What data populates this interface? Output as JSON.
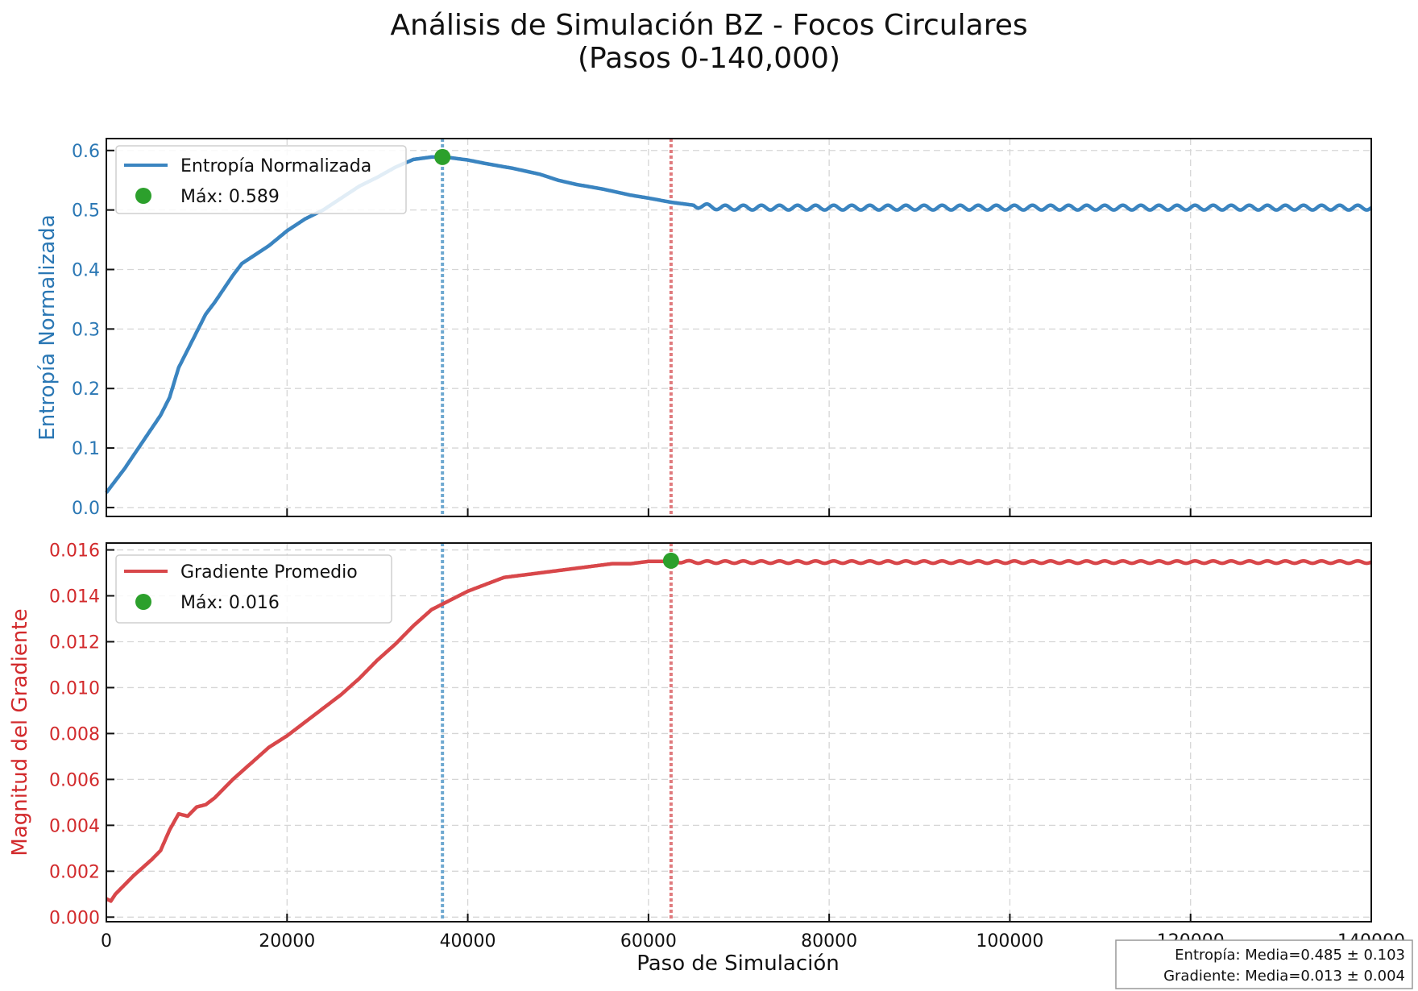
{
  "title_line1": "Análisis de Simulación BZ - Focos Circulares",
  "title_line2": "(Pasos 0-140,000)",
  "colors": {
    "entropy": "#3a84c0",
    "entropy_axis": "#2a77b4",
    "gradient": "#d8474a",
    "gradient_axis": "#d22a2c",
    "marker": "#2ca02c"
  },
  "stats_box": {
    "line1": "Entropía: Media=0.485 ± 0.103",
    "line2": "Gradiente: Media=0.013 ± 0.004"
  },
  "chart_data": [
    {
      "type": "line",
      "ylabel": "Entropía Normalizada",
      "xlim": [
        0,
        140000
      ],
      "ylim": [
        -0.015,
        0.62
      ],
      "yticks": [
        0.0,
        0.1,
        0.2,
        0.3,
        0.4,
        0.5,
        0.6
      ],
      "ytick_labels": [
        "0.0",
        "0.1",
        "0.2",
        "0.3",
        "0.4",
        "0.5",
        "0.6"
      ],
      "grid": true,
      "legend_placement": "upper-left",
      "series": [
        {
          "name": "Entropía Normalizada",
          "x": [
            0,
            1000,
            2000,
            4000,
            6000,
            7000,
            8000,
            9000,
            10000,
            11000,
            12000,
            14000,
            15000,
            16000,
            18000,
            20000,
            22000,
            24000,
            26000,
            28000,
            30000,
            32000,
            34000,
            36000,
            37000,
            38000,
            40000,
            42000,
            45000,
            48000,
            50000,
            52000,
            55000,
            58000,
            60000,
            62500,
            65000,
            67000,
            70000
          ],
          "y": [
            0.025,
            0.045,
            0.065,
            0.11,
            0.155,
            0.185,
            0.235,
            0.265,
            0.295,
            0.325,
            0.345,
            0.39,
            0.41,
            0.42,
            0.44,
            0.465,
            0.485,
            0.5,
            0.52,
            0.54,
            0.555,
            0.572,
            0.585,
            0.589,
            0.589,
            0.588,
            0.584,
            0.578,
            0.57,
            0.56,
            0.55,
            0.543,
            0.535,
            0.525,
            0.52,
            0.513,
            0.508,
            0.506,
            0.505
          ],
          "oscillation_after": 65000,
          "oscillation_amplitude": 0.004,
          "oscillation_period": 2000,
          "plateau_value": 0.504
        }
      ],
      "max_marker": {
        "label": "Máx: 0.589",
        "x": 37200,
        "y": 0.589
      },
      "vlines": [
        {
          "x": 37200,
          "color": "#6ea8d0"
        },
        {
          "x": 62500,
          "color": "#e07a7d"
        }
      ]
    },
    {
      "type": "line",
      "ylabel": "Magnitud del Gradiente",
      "xlabel": "Paso de Simulación",
      "xlim": [
        0,
        140000
      ],
      "ylim": [
        -0.0002,
        0.0163
      ],
      "yticks": [
        0.0,
        0.002,
        0.004,
        0.006,
        0.008,
        0.01,
        0.012,
        0.014,
        0.016
      ],
      "ytick_labels": [
        "0.000",
        "0.002",
        "0.004",
        "0.006",
        "0.008",
        "0.010",
        "0.012",
        "0.014",
        "0.016"
      ],
      "xticks": [
        0,
        20000,
        40000,
        60000,
        80000,
        100000,
        120000,
        140000
      ],
      "xtick_labels": [
        "0",
        "20000",
        "40000",
        "60000",
        "80000",
        "100000",
        "120000",
        "140000"
      ],
      "grid": true,
      "legend_placement": "upper-left",
      "series": [
        {
          "name": "Gradiente Promedio",
          "x": [
            0,
            500,
            1000,
            3000,
            5000,
            6000,
            7000,
            8000,
            9000,
            10000,
            11000,
            12000,
            14000,
            16000,
            18000,
            20000,
            22000,
            24000,
            26000,
            28000,
            30000,
            32000,
            34000,
            36000,
            38000,
            40000,
            42000,
            44000,
            46000,
            48000,
            50000,
            52000,
            54000,
            56000,
            58000,
            60000,
            62500,
            65000
          ],
          "y": [
            0.0008,
            0.0007,
            0.001,
            0.0018,
            0.0025,
            0.0029,
            0.0038,
            0.0045,
            0.0044,
            0.0048,
            0.0049,
            0.0052,
            0.006,
            0.0067,
            0.0074,
            0.0079,
            0.0085,
            0.0091,
            0.0097,
            0.0104,
            0.0112,
            0.0119,
            0.0127,
            0.0134,
            0.0138,
            0.0142,
            0.0145,
            0.0148,
            0.0149,
            0.015,
            0.0151,
            0.0152,
            0.0153,
            0.0154,
            0.0154,
            0.0155,
            0.0155,
            0.0155
          ],
          "oscillation_after": 62500,
          "oscillation_amplitude": 5e-05,
          "oscillation_period": 2000,
          "plateau_value": 0.01547
        }
      ],
      "max_marker": {
        "label": "Máx: 0.016",
        "x": 62500,
        "y": 0.01553
      },
      "vlines": [
        {
          "x": 37200,
          "color": "#6ea8d0"
        },
        {
          "x": 62500,
          "color": "#e07a7d"
        }
      ]
    }
  ]
}
